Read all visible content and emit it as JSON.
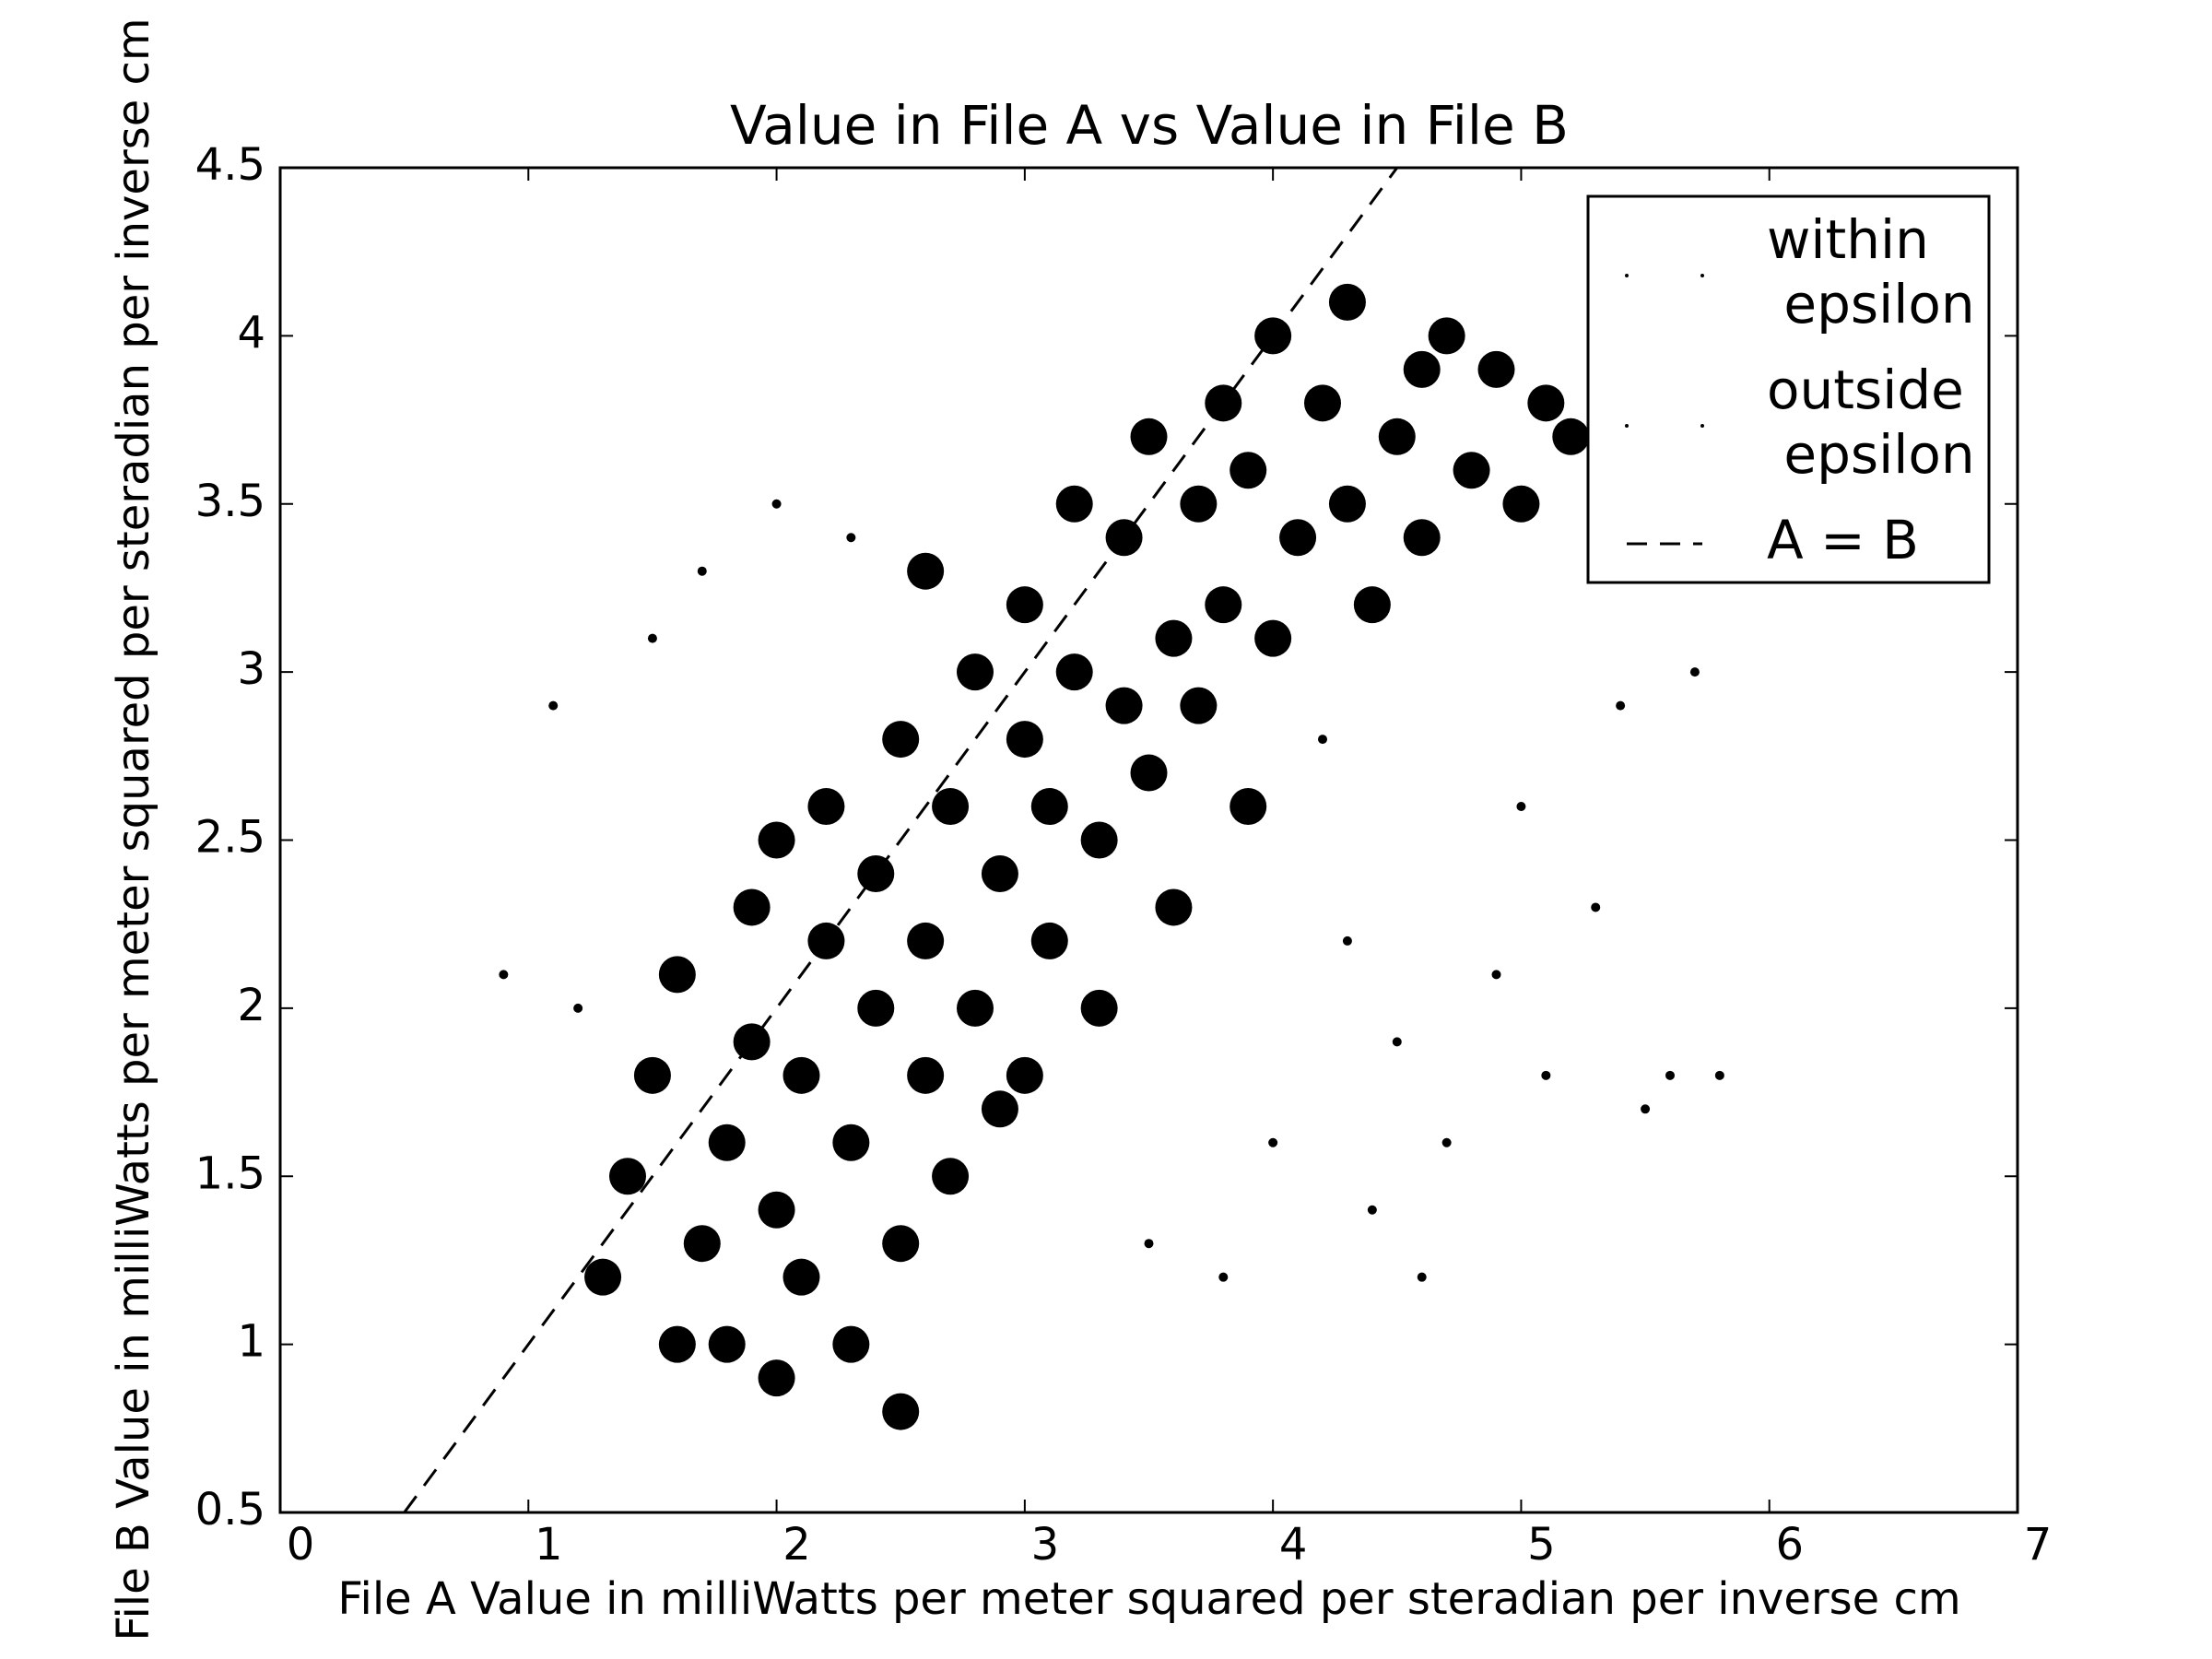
{
  "chart_data": {
    "type": "scatter",
    "title": "Value in File A vs Value in File B",
    "x_label": "File A Value in milliWatts per meter squared per steradian per inverse cm",
    "y_label": "File B Value in milliWatts per meter squared per steradian per inverse cm",
    "xlim": [
      0,
      7
    ],
    "ylim": [
      0.5,
      4.5
    ],
    "xticks": [
      0,
      1,
      2,
      3,
      4,
      5,
      6,
      7
    ],
    "yticks": [
      0.5,
      1,
      1.5,
      2,
      2.5,
      3,
      3.5,
      4,
      4.5
    ],
    "grid": false,
    "legend": "upper right",
    "series": [
      {
        "name": "within epsilon",
        "color": "#000000",
        "x": [
          1.3,
          1.4,
          1.5,
          1.6,
          1.7,
          1.8,
          1.8,
          1.9,
          1.9,
          2.0,
          2.0,
          2.1,
          2.1,
          2.2,
          2.2,
          2.3,
          2.3,
          2.4,
          2.4,
          2.5,
          2.5,
          2.6,
          2.6,
          2.7,
          2.7,
          2.8,
          2.8,
          2.9,
          2.9,
          3.0,
          3.0,
          3.1,
          3.1,
          3.2,
          3.2,
          3.3,
          3.4,
          3.4,
          3.5,
          3.5,
          3.6,
          3.7,
          3.7,
          3.8,
          3.8,
          3.9,
          4.0,
          4.0,
          4.1,
          4.2,
          4.3,
          4.3,
          4.4,
          4.5,
          4.6,
          4.6,
          4.7,
          4.8,
          4.9,
          5.0,
          5.1,
          5.2,
          3.0,
          3.3,
          3.6,
          3.9,
          2.5,
          1.6,
          2.0,
          2.6
        ],
        "values": [
          1.2,
          1.5,
          1.8,
          2.1,
          1.3,
          1.0,
          1.6,
          1.9,
          2.3,
          0.9,
          1.4,
          1.2,
          1.8,
          2.2,
          2.6,
          1.0,
          1.6,
          2.0,
          2.4,
          1.3,
          2.8,
          1.8,
          2.2,
          1.5,
          2.6,
          2.0,
          3.0,
          1.7,
          2.4,
          2.8,
          3.2,
          2.2,
          2.6,
          3.0,
          3.5,
          2.5,
          2.9,
          3.4,
          2.7,
          3.7,
          3.1,
          3.5,
          2.9,
          3.8,
          3.2,
          3.6,
          3.1,
          4.0,
          3.4,
          3.8,
          3.5,
          4.1,
          3.2,
          3.7,
          3.9,
          3.4,
          4.0,
          3.6,
          3.9,
          3.5,
          3.8,
          3.7,
          1.8,
          2.0,
          2.3,
          2.6,
          0.8,
          1.0,
          2.5,
          3.3
        ]
      },
      {
        "name": "outside epsilon",
        "color": "#000000",
        "x": [
          1.2,
          1.1,
          1.5,
          1.7,
          2.0,
          2.3,
          4.3,
          4.5,
          4.7,
          4.9,
          5.1,
          5.3,
          5.5,
          4.4,
          4.6,
          5.0,
          5.4,
          5.7,
          5.8,
          3.8,
          4.0,
          4.2,
          0.9,
          5.6,
          3.5
        ],
        "values": [
          2.0,
          2.9,
          3.1,
          3.3,
          3.5,
          3.4,
          2.2,
          1.9,
          1.6,
          2.1,
          1.8,
          2.3,
          1.7,
          1.4,
          1.2,
          2.6,
          2.9,
          3.0,
          1.8,
          1.2,
          1.6,
          2.8,
          2.1,
          1.8,
          1.3
        ]
      },
      {
        "name": "A = B",
        "color": "#000000",
        "style": "dashed",
        "x": [
          0.5,
          4.5
        ],
        "values": [
          0.5,
          4.5
        ]
      }
    ]
  }
}
